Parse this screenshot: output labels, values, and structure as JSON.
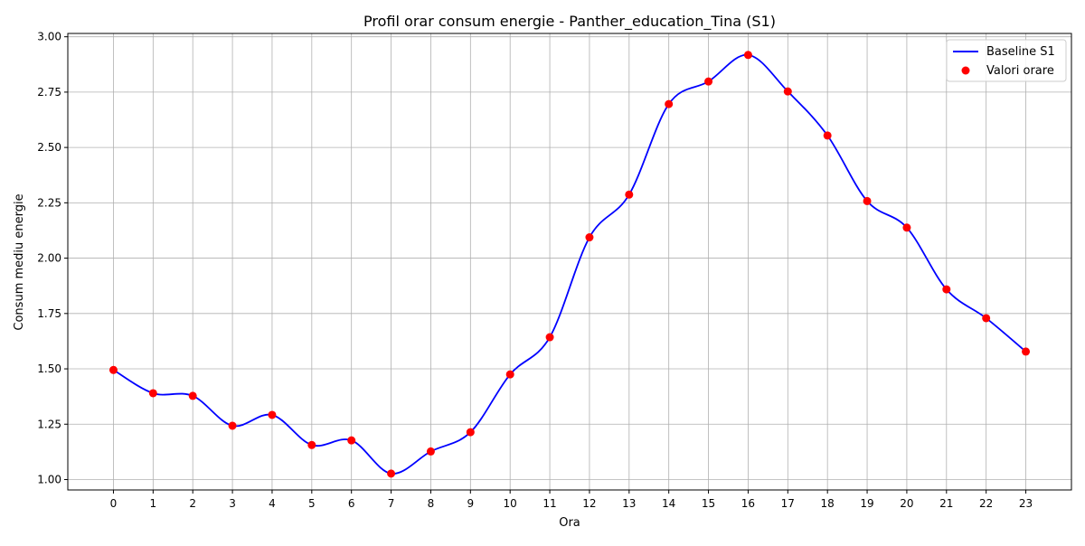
{
  "chart_data": {
    "type": "line",
    "title": "Profil orar consum energie - Panther_education_Tina (S1)",
    "xlabel": "Ora",
    "ylabel": "Consum mediu energie",
    "x": [
      0,
      1,
      2,
      3,
      4,
      5,
      6,
      7,
      8,
      9,
      10,
      11,
      12,
      13,
      14,
      15,
      16,
      17,
      18,
      19,
      20,
      21,
      22,
      23
    ],
    "x_ticks": [
      "0",
      "1",
      "2",
      "3",
      "4",
      "5",
      "6",
      "7",
      "8",
      "9",
      "10",
      "11",
      "12",
      "13",
      "14",
      "15",
      "16",
      "17",
      "18",
      "19",
      "20",
      "21",
      "22",
      "23"
    ],
    "y_ticks": [
      "1.00",
      "1.25",
      "1.50",
      "1.75",
      "2.00",
      "2.25",
      "2.50",
      "2.75",
      "3.00"
    ],
    "xlim": [
      -1.15,
      24.15
    ],
    "ylim": [
      0.953,
      3.015
    ],
    "grid": true,
    "legend_position": "top-right",
    "series": [
      {
        "name": "Baseline S1",
        "kind": "line",
        "color": "#0000ff",
        "values": [
          1.495,
          1.39,
          1.378,
          1.243,
          1.292,
          1.156,
          1.177,
          1.027,
          1.127,
          1.214,
          1.475,
          1.643,
          2.094,
          2.287,
          2.696,
          2.798,
          2.918,
          2.753,
          2.554,
          2.258,
          2.138,
          1.859,
          1.729,
          1.578
        ]
      },
      {
        "name": "Valori orare",
        "kind": "scatter",
        "color": "#ff0000",
        "values": [
          1.495,
          1.39,
          1.378,
          1.243,
          1.292,
          1.156,
          1.177,
          1.027,
          1.127,
          1.214,
          1.475,
          1.643,
          2.094,
          2.287,
          2.696,
          2.798,
          2.918,
          2.753,
          2.554,
          2.258,
          2.138,
          1.859,
          1.729,
          1.578
        ]
      }
    ]
  }
}
